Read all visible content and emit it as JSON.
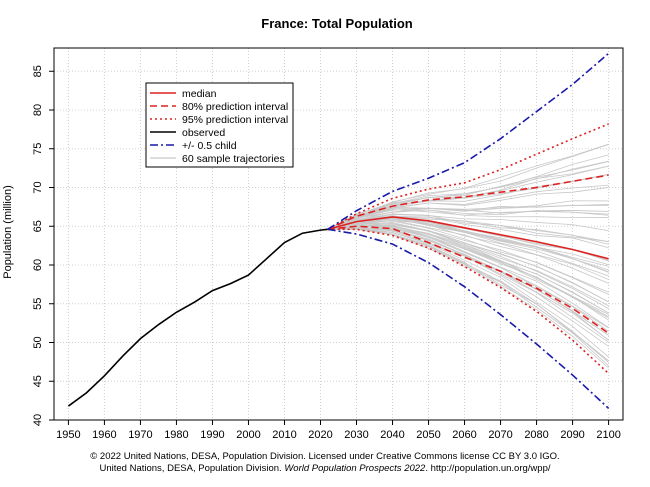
{
  "chart_data": {
    "type": "line",
    "title": "France: Total Population",
    "ylabel": "Population (million)",
    "xlabel": "",
    "xlim": [
      1946,
      2104
    ],
    "ylim": [
      40,
      88
    ],
    "x_ticks": [
      1950,
      1960,
      1970,
      1980,
      1990,
      2000,
      2010,
      2020,
      2030,
      2040,
      2050,
      2060,
      2070,
      2080,
      2090,
      2100
    ],
    "y_ticks": [
      40,
      45,
      50,
      55,
      60,
      65,
      70,
      75,
      80,
      85
    ],
    "grid": true,
    "legend_placement": "top-left",
    "legend": [
      {
        "label": "median",
        "color": "#dd2222",
        "style": "solid"
      },
      {
        "label": "80% prediction interval",
        "color": "#dd2222",
        "style": "dashed"
      },
      {
        "label": "95% prediction interval",
        "color": "#dd2222",
        "style": "dotted"
      },
      {
        "label": "observed",
        "color": "#000000",
        "style": "solid"
      },
      {
        "label": "+/- 0.5 child",
        "color": "#1a1aaa",
        "style": "dashdot"
      },
      {
        "label": "60 sample trajectories",
        "color": "#bbbbbb",
        "style": "solid"
      }
    ],
    "series": [
      {
        "name": "observed",
        "color": "#000000",
        "style": "solid",
        "x": [
          1950,
          1955,
          1960,
          1965,
          1970,
          1975,
          1980,
          1985,
          1990,
          1995,
          2000,
          2005,
          2010,
          2015,
          2020,
          2022
        ],
        "y": [
          41.8,
          43.5,
          45.7,
          48.2,
          50.5,
          52.3,
          53.9,
          55.2,
          56.7,
          57.6,
          58.7,
          60.8,
          62.9,
          64.1,
          64.5,
          64.6
        ]
      },
      {
        "name": "median",
        "color": "#dd2222",
        "style": "solid",
        "x": [
          2022,
          2030,
          2040,
          2050,
          2060,
          2070,
          2080,
          2090,
          2100
        ],
        "y": [
          64.6,
          65.6,
          66.2,
          65.7,
          64.8,
          63.9,
          63.0,
          62.0,
          60.8
        ]
      },
      {
        "name": "80% upper",
        "color": "#dd2222",
        "style": "dashed",
        "x": [
          2022,
          2030,
          2040,
          2050,
          2060,
          2070,
          2080,
          2090,
          2100
        ],
        "y": [
          64.6,
          66.3,
          67.6,
          68.4,
          68.8,
          69.4,
          70.0,
          70.8,
          71.6
        ]
      },
      {
        "name": "80% lower",
        "color": "#dd2222",
        "style": "dashed",
        "x": [
          2022,
          2030,
          2040,
          2050,
          2060,
          2070,
          2080,
          2090,
          2100
        ],
        "y": [
          64.6,
          65.0,
          64.7,
          62.9,
          61.0,
          59.2,
          57.0,
          54.4,
          51.2
        ]
      },
      {
        "name": "95% upper",
        "color": "#dd2222",
        "style": "dotted",
        "x": [
          2022,
          2030,
          2040,
          2050,
          2060,
          2070,
          2080,
          2090,
          2100
        ],
        "y": [
          64.6,
          66.6,
          68.6,
          69.8,
          70.6,
          72.3,
          74.3,
          76.3,
          78.2
        ]
      },
      {
        "name": "95% lower",
        "color": "#dd2222",
        "style": "dotted",
        "x": [
          2022,
          2030,
          2040,
          2050,
          2060,
          2070,
          2080,
          2090,
          2100
        ],
        "y": [
          64.6,
          64.6,
          63.8,
          62.2,
          59.8,
          57.1,
          54.0,
          50.3,
          46.0
        ]
      },
      {
        "name": "+0.5 child",
        "color": "#1a1aaa",
        "style": "dashdot",
        "x": [
          2022,
          2030,
          2040,
          2050,
          2060,
          2070,
          2080,
          2090,
          2100
        ],
        "y": [
          64.6,
          67.0,
          69.5,
          71.2,
          73.2,
          76.3,
          79.8,
          83.3,
          87.3
        ]
      },
      {
        "name": "-0.5 child",
        "color": "#1a1aaa",
        "style": "dashdot",
        "x": [
          2022,
          2030,
          2040,
          2050,
          2060,
          2070,
          2080,
          2090,
          2100
        ],
        "y": [
          64.6,
          64.0,
          62.7,
          60.3,
          57.2,
          53.6,
          49.8,
          45.8,
          41.5
        ]
      }
    ]
  },
  "footer": {
    "line1": "© 2022 United Nations, DESA, Population Division. Licensed under Creative Commons license CC BY 3.0 IGO.",
    "line2_prefix": "United Nations, DESA, Population Division. ",
    "line2_italic": "World Population Prospects 2022",
    "line2_suffix": ". http://population.un.org/wpp/"
  }
}
